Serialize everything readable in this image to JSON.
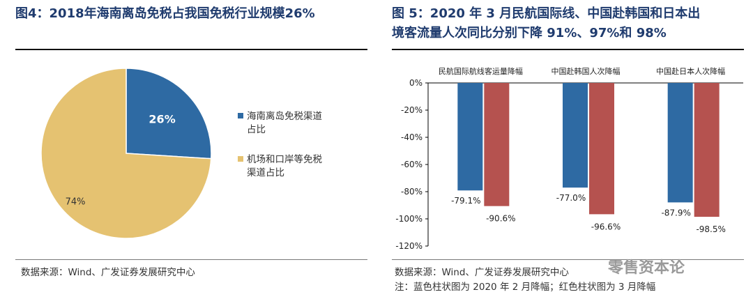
{
  "left_figure": {
    "title": "图4：2018年海南离岛免税占我国免税行业规模26%",
    "source": "数据来源：Wind、广发证券发展研究中心"
  },
  "right_figure": {
    "title_line1": "图 5：2020 年 3 月民航国际线、中国赴韩国和日本出",
    "title_line2": "境客流量人次同比分别下降 91%、97%和 98%",
    "source": "数据来源：Wind、广发证券发展研究中心",
    "note": "注：蓝色柱状图为 2020 年 2 月降幅；红色柱状图为 3 月降幅"
  },
  "watermark": "零售资本论",
  "chart_data": [
    {
      "type": "pie",
      "slices": [
        {
          "label": "海南离岛免税渠道占比",
          "legend_lines": [
            "海南离岛免税渠道",
            "占比"
          ],
          "value": 26,
          "display": "26%",
          "color": "#2e6aa3"
        },
        {
          "label": "机场和口岸等免税渠道占比",
          "legend_lines": [
            "机场和口岸等免税",
            "渠道占比"
          ],
          "value": 74,
          "display": "74%",
          "color": "#e5c271"
        }
      ],
      "legend_position": "right"
    },
    {
      "type": "bar",
      "categories": [
        "民航国际航线客运量降幅",
        "中国赴韩国人次降幅",
        "中国赴日本人次降幅"
      ],
      "series": [
        {
          "values": [
            -79.1,
            -77.0,
            -87.9
          ],
          "labels": [
            "-79.1%",
            "-77.0%",
            "-87.9%"
          ],
          "color": "#2e6aa3"
        },
        {
          "values": [
            -90.6,
            -96.6,
            -98.5
          ],
          "labels": [
            "-90.6%",
            "-96.6%",
            "-98.5%"
          ],
          "color": "#b5524f"
        }
      ],
      "ylim": [
        -120,
        0
      ],
      "yticks": [
        "0%",
        "-20%",
        "-40%",
        "-60%",
        "-80%",
        "-100%",
        "-120%"
      ],
      "category_labels_position": "top",
      "grid": false
    }
  ]
}
